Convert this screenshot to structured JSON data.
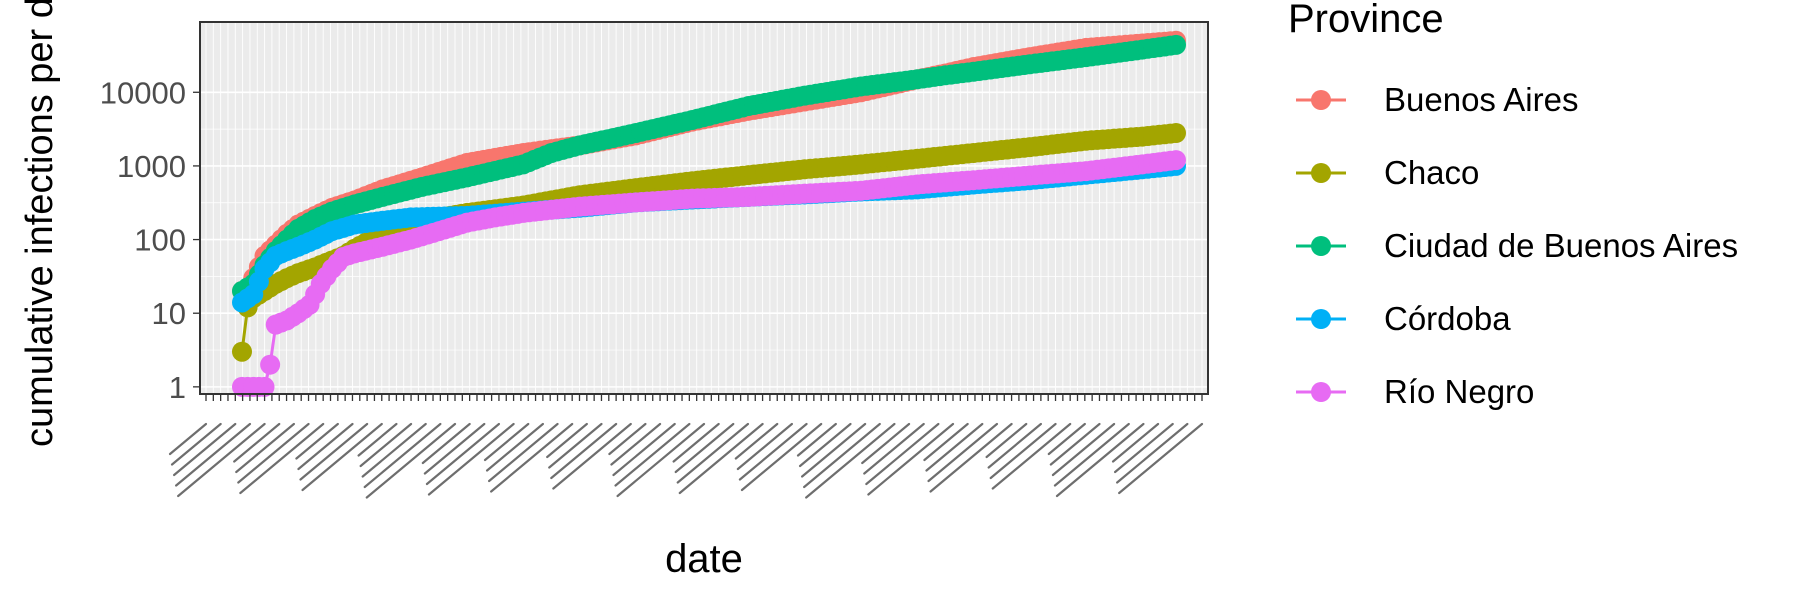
{
  "chart_data": {
    "type": "line",
    "xlabel": "date",
    "ylabel": "cumulative infections per day",
    "y_scale": "log10",
    "ylim": [
      0.8,
      90000
    ],
    "y_ticks": [
      1,
      10,
      100,
      1000,
      10000
    ],
    "y_tick_labels": [
      "1",
      "10",
      "100",
      "1000",
      "10000"
    ],
    "x_tick_count": 137,
    "x_tick_labels_legible": false,
    "grid": true,
    "legend": {
      "title": "Province",
      "placement": "right"
    },
    "series": [
      {
        "name": "Buenos Aires",
        "color": "#F8766D",
        "points": [
          [
            0,
            20
          ],
          [
            1,
            22
          ],
          [
            2,
            30
          ],
          [
            4,
            60
          ],
          [
            6,
            85
          ],
          [
            8,
            120
          ],
          [
            10,
            160
          ],
          [
            13,
            210
          ],
          [
            16,
            270
          ],
          [
            20,
            340
          ],
          [
            25,
            480
          ],
          [
            32,
            700
          ],
          [
            40,
            1100
          ],
          [
            50,
            1500
          ],
          [
            60,
            1900
          ],
          [
            70,
            2600
          ],
          [
            80,
            4000
          ],
          [
            90,
            5600
          ],
          [
            100,
            7500
          ],
          [
            110,
            10000
          ],
          [
            120,
            15000
          ],
          [
            125,
            18000
          ],
          [
            130,
            22000
          ],
          [
            140,
            30000
          ],
          [
            150,
            40000
          ],
          [
            160,
            46000
          ],
          [
            166,
            50000
          ]
        ]
      },
      {
        "name": "Chaco",
        "color": "#A3A500",
        "points": [
          [
            0,
            3
          ],
          [
            1,
            12
          ],
          [
            2,
            16
          ],
          [
            4,
            20
          ],
          [
            6,
            25
          ],
          [
            8,
            30
          ],
          [
            10,
            35
          ],
          [
            13,
            42
          ],
          [
            16,
            52
          ],
          [
            18,
            60
          ],
          [
            20,
            75
          ],
          [
            25,
            120
          ],
          [
            30,
            170
          ],
          [
            40,
            230
          ],
          [
            50,
            290
          ],
          [
            60,
            400
          ],
          [
            70,
            500
          ],
          [
            80,
            620
          ],
          [
            90,
            750
          ],
          [
            100,
            900
          ],
          [
            110,
            1050
          ],
          [
            120,
            1250
          ],
          [
            130,
            1500
          ],
          [
            140,
            1800
          ],
          [
            150,
            2200
          ],
          [
            160,
            2500
          ],
          [
            166,
            2800
          ]
        ]
      },
      {
        "name": "Ciudad de Buenos Aires",
        "color": "#00BF7D",
        "points": [
          [
            0,
            20
          ],
          [
            2,
            25
          ],
          [
            4,
            45
          ],
          [
            6,
            70
          ],
          [
            8,
            100
          ],
          [
            10,
            140
          ],
          [
            13,
            190
          ],
          [
            16,
            240
          ],
          [
            20,
            300
          ],
          [
            25,
            380
          ],
          [
            32,
            520
          ],
          [
            40,
            700
          ],
          [
            50,
            1050
          ],
          [
            55,
            1500
          ],
          [
            60,
            1900
          ],
          [
            70,
            2800
          ],
          [
            80,
            4200
          ],
          [
            90,
            6500
          ],
          [
            100,
            9000
          ],
          [
            110,
            12000
          ],
          [
            120,
            15000
          ],
          [
            125,
            17000
          ],
          [
            130,
            19000
          ],
          [
            140,
            24000
          ],
          [
            150,
            30000
          ],
          [
            160,
            38000
          ],
          [
            166,
            44000
          ]
        ]
      },
      {
        "name": "Córdoba",
        "color": "#00B0F6",
        "points": [
          [
            0,
            14
          ],
          [
            2,
            18
          ],
          [
            4,
            40
          ],
          [
            6,
            60
          ],
          [
            8,
            70
          ],
          [
            10,
            80
          ],
          [
            13,
            100
          ],
          [
            16,
            130
          ],
          [
            20,
            160
          ],
          [
            25,
            180
          ],
          [
            30,
            200
          ],
          [
            40,
            210
          ],
          [
            50,
            240
          ],
          [
            60,
            270
          ],
          [
            70,
            320
          ],
          [
            80,
            350
          ],
          [
            90,
            380
          ],
          [
            100,
            410
          ],
          [
            110,
            450
          ],
          [
            120,
            480
          ],
          [
            130,
            560
          ],
          [
            140,
            640
          ],
          [
            150,
            760
          ],
          [
            160,
            900
          ],
          [
            166,
            1000
          ]
        ]
      },
      {
        "name": "Río Negro",
        "color": "#E76BF3",
        "points": [
          [
            0,
            1
          ],
          [
            2,
            1
          ],
          [
            4,
            1
          ],
          [
            5,
            2
          ],
          [
            6,
            7
          ],
          [
            8,
            8
          ],
          [
            10,
            10
          ],
          [
            12,
            13
          ],
          [
            14,
            25
          ],
          [
            16,
            40
          ],
          [
            18,
            58
          ],
          [
            20,
            65
          ],
          [
            25,
            80
          ],
          [
            30,
            100
          ],
          [
            35,
            130
          ],
          [
            40,
            170
          ],
          [
            45,
            200
          ],
          [
            50,
            230
          ],
          [
            60,
            280
          ],
          [
            70,
            320
          ],
          [
            80,
            360
          ],
          [
            90,
            380
          ],
          [
            100,
            420
          ],
          [
            110,
            460
          ],
          [
            120,
            560
          ],
          [
            130,
            640
          ],
          [
            140,
            740
          ],
          [
            150,
            850
          ],
          [
            160,
            1050
          ],
          [
            166,
            1200
          ]
        ]
      }
    ]
  }
}
